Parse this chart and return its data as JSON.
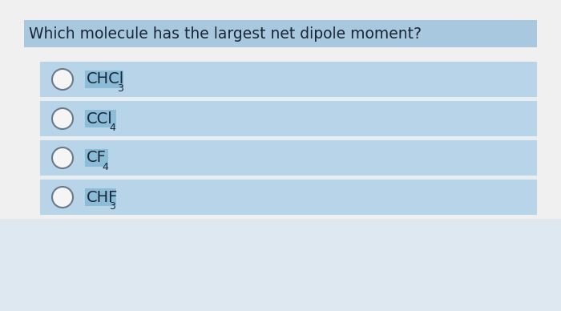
{
  "question": "Which molecule has the largest net dipole moment?",
  "options": [
    {
      "main": "CHCl",
      "subscript": "3"
    },
    {
      "main": "CCl",
      "subscript": "4"
    },
    {
      "main": "CF",
      "subscript": "4"
    },
    {
      "main": "CHF",
      "subscript": "3"
    }
  ],
  "fig_bg": "#e8eef2",
  "question_bg": "#a8c8e0",
  "option_row_bg": "#b8d4e8",
  "option_gap_bg": "#dde8f0",
  "text_highlight_bg": "#8bbdd9",
  "text_color": "#1a2535",
  "question_font_size": 13.5,
  "option_font_size": 14,
  "sub_font_size": 9
}
